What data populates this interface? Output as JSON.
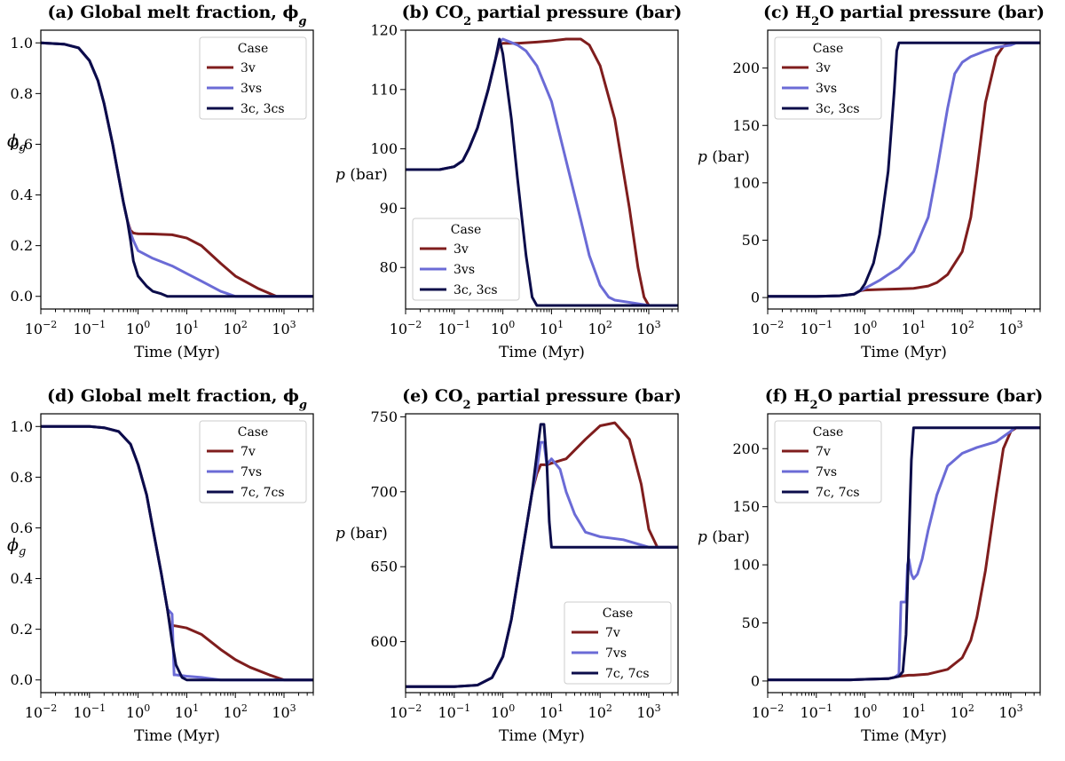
{
  "colors": {
    "v": "#7f1d1d",
    "vs": "#6b6bd6",
    "c": "#0b0c4a"
  },
  "chart_data": [
    {
      "id": "a",
      "type": "line",
      "title": "(a) Global melt fraction, ϕg",
      "title_main": "(a) Global melt fraction, ϕ",
      "title_sub": "g",
      "xlabel": "Time (Myr)",
      "ylabel": "ϕ",
      "ylabel_sub": "g",
      "xscale": "log",
      "xlim": [
        0.01,
        4000
      ],
      "ylim": [
        -0.05,
        1.05
      ],
      "yticks": [
        0.0,
        0.2,
        0.4,
        0.6,
        0.8,
        1.0
      ],
      "ytick_labels": [
        "0.0",
        "0.2",
        "0.4",
        "0.6",
        "0.8",
        "1.0"
      ],
      "xtick_labels": [
        "10−2",
        "10−1",
        "100",
        "101",
        "102",
        "103"
      ],
      "legend": {
        "title": "Case",
        "position": "top-right"
      },
      "series": [
        {
          "name": "3v",
          "color_key": "v",
          "x": [
            0.01,
            0.03,
            0.06,
            0.1,
            0.15,
            0.2,
            0.3,
            0.4,
            0.5,
            0.6,
            0.7,
            0.8,
            0.9,
            1,
            2,
            5,
            10,
            20,
            50,
            100,
            300,
            700,
            4000
          ],
          "y": [
            1.0,
            0.995,
            0.98,
            0.93,
            0.85,
            0.76,
            0.6,
            0.47,
            0.37,
            0.3,
            0.26,
            0.25,
            0.248,
            0.247,
            0.246,
            0.243,
            0.23,
            0.2,
            0.13,
            0.08,
            0.03,
            0.0,
            0.0
          ]
        },
        {
          "name": "3vs",
          "color_key": "vs",
          "x": [
            0.01,
            0.03,
            0.06,
            0.1,
            0.15,
            0.2,
            0.3,
            0.4,
            0.5,
            0.6,
            0.7,
            0.8,
            1,
            2,
            5,
            10,
            20,
            50,
            100,
            200,
            4000
          ],
          "y": [
            1.0,
            0.995,
            0.98,
            0.93,
            0.85,
            0.76,
            0.6,
            0.47,
            0.37,
            0.3,
            0.25,
            0.22,
            0.18,
            0.15,
            0.12,
            0.09,
            0.06,
            0.02,
            0.0,
            0.0,
            0.0
          ]
        },
        {
          "name": "3c, 3cs",
          "color_key": "c",
          "x": [
            0.01,
            0.03,
            0.06,
            0.1,
            0.15,
            0.2,
            0.3,
            0.4,
            0.5,
            0.6,
            0.7,
            0.8,
            1,
            1.5,
            2,
            3,
            4,
            5,
            4000
          ],
          "y": [
            1.0,
            0.995,
            0.98,
            0.93,
            0.85,
            0.76,
            0.6,
            0.47,
            0.37,
            0.3,
            0.22,
            0.14,
            0.08,
            0.04,
            0.02,
            0.01,
            0.0,
            0.0,
            0.0
          ]
        }
      ]
    },
    {
      "id": "b",
      "type": "line",
      "title": "(b) CO2 partial pressure (bar)",
      "title_main": "(b) CO",
      "title_sub": "2",
      "title_rest": " partial pressure (bar)",
      "xlabel": "Time (Myr)",
      "ylabel": "p (bar)",
      "xscale": "log",
      "xlim": [
        0.01,
        4000
      ],
      "ylim": [
        73,
        120
      ],
      "yticks": [
        80,
        90,
        100,
        110,
        120
      ],
      "ytick_labels": [
        "80",
        "90",
        "100",
        "110",
        "120"
      ],
      "xtick_labels": [
        "10−2",
        "10−1",
        "100",
        "101",
        "102",
        "103"
      ],
      "legend": {
        "title": "Case",
        "position": "lower-left"
      },
      "series": [
        {
          "name": "3v",
          "color_key": "v",
          "x": [
            0.01,
            0.05,
            0.1,
            0.15,
            0.2,
            0.3,
            0.5,
            0.7,
            0.85,
            1,
            2,
            5,
            10,
            20,
            40,
            60,
            100,
            200,
            400,
            600,
            800,
            1000,
            4000
          ],
          "y": [
            96.5,
            96.5,
            97,
            98,
            100,
            103.5,
            110,
            115,
            117.5,
            117.8,
            117.8,
            118,
            118.2,
            118.5,
            118.5,
            117.5,
            114,
            105,
            90,
            80,
            75,
            73.6,
            73.6
          ]
        },
        {
          "name": "3vs",
          "color_key": "vs",
          "x": [
            0.01,
            0.05,
            0.1,
            0.15,
            0.2,
            0.3,
            0.5,
            0.7,
            0.85,
            1,
            2,
            3,
            5,
            10,
            20,
            40,
            60,
            100,
            150,
            200,
            500,
            1000,
            4000
          ],
          "y": [
            96.5,
            96.5,
            97,
            98,
            100,
            103.5,
            110,
            115,
            118,
            118.5,
            117.5,
            116.5,
            114,
            108,
            98,
            88,
            82,
            77,
            75,
            74.5,
            74,
            73.6,
            73.6
          ]
        },
        {
          "name": "3c, 3cs",
          "color_key": "c",
          "x": [
            0.01,
            0.05,
            0.1,
            0.15,
            0.2,
            0.3,
            0.5,
            0.7,
            0.85,
            1,
            1.5,
            2,
            3,
            4,
            5,
            4000
          ],
          "y": [
            96.5,
            96.5,
            97,
            98,
            100,
            103.5,
            110,
            115,
            118.5,
            116,
            105,
            95,
            82,
            75,
            73.6,
            73.6
          ]
        }
      ]
    },
    {
      "id": "c",
      "type": "line",
      "title": "(c) H2O partial pressure (bar)",
      "title_main": "(c) H",
      "title_sub": "2",
      "title_rest": "O partial pressure (bar)",
      "xlabel": "Time (Myr)",
      "ylabel": "p (bar)",
      "xscale": "log",
      "xlim": [
        0.01,
        4000
      ],
      "ylim": [
        -10,
        233
      ],
      "yticks": [
        0,
        50,
        100,
        150,
        200
      ],
      "ytick_labels": [
        "0",
        "50",
        "100",
        "150",
        "200"
      ],
      "xtick_labels": [
        "10−2",
        "10−1",
        "100",
        "101",
        "102",
        "103"
      ],
      "legend": {
        "title": "Case",
        "position": "top-left"
      },
      "series": [
        {
          "name": "3v",
          "color_key": "v",
          "x": [
            0.01,
            0.1,
            0.3,
            0.6,
            0.8,
            1,
            2,
            5,
            10,
            20,
            30,
            50,
            100,
            150,
            200,
            300,
            500,
            700,
            1000,
            1500,
            4000
          ],
          "y": [
            1,
            1,
            1.5,
            3,
            6,
            6.5,
            7,
            7.5,
            8,
            10,
            13,
            20,
            40,
            70,
            110,
            170,
            210,
            219,
            222,
            222,
            222
          ]
        },
        {
          "name": "3vs",
          "color_key": "vs",
          "x": [
            0.01,
            0.1,
            0.3,
            0.6,
            0.8,
            1,
            2,
            3,
            5,
            10,
            20,
            30,
            50,
            70,
            100,
            150,
            200,
            300,
            500,
            1000,
            1300,
            4000
          ],
          "y": [
            1,
            1,
            1.5,
            3,
            6,
            8,
            15,
            20,
            26,
            40,
            70,
            110,
            165,
            195,
            205,
            210,
            212,
            215,
            218,
            220,
            222,
            222
          ]
        },
        {
          "name": "3c, 3cs",
          "color_key": "c",
          "x": [
            0.01,
            0.1,
            0.3,
            0.6,
            0.8,
            1,
            1.5,
            2,
            3,
            4,
            4.5,
            5,
            4000
          ],
          "y": [
            1,
            1,
            1.5,
            3,
            6,
            12,
            30,
            55,
            110,
            180,
            215,
            222,
            222
          ]
        }
      ]
    },
    {
      "id": "d",
      "type": "line",
      "title": "(d) Global melt fraction, ϕg",
      "title_main": "(d) Global melt fraction, ϕ",
      "title_sub": "g",
      "xlabel": "Time (Myr)",
      "ylabel": "ϕ",
      "ylabel_sub": "g",
      "xscale": "log",
      "xlim": [
        0.01,
        4000
      ],
      "ylim": [
        -0.05,
        1.05
      ],
      "yticks": [
        0.0,
        0.2,
        0.4,
        0.6,
        0.8,
        1.0
      ],
      "ytick_labels": [
        "0.0",
        "0.2",
        "0.4",
        "0.6",
        "0.8",
        "1.0"
      ],
      "xtick_labels": [
        "10−2",
        "10−1",
        "100",
        "101",
        "102",
        "103"
      ],
      "legend": {
        "title": "Case",
        "position": "top-right"
      },
      "series": [
        {
          "name": "7v",
          "color_key": "v",
          "x": [
            0.01,
            0.1,
            0.2,
            0.4,
            0.7,
            1,
            1.5,
            2,
            3,
            4,
            4.5,
            5,
            6,
            10,
            20,
            50,
            100,
            200,
            500,
            1000,
            4000
          ],
          "y": [
            1.0,
            1.0,
            0.995,
            0.98,
            0.93,
            0.85,
            0.73,
            0.6,
            0.42,
            0.28,
            0.22,
            0.215,
            0.213,
            0.205,
            0.18,
            0.12,
            0.08,
            0.05,
            0.02,
            0.0,
            0.0
          ]
        },
        {
          "name": "7vs",
          "color_key": "vs",
          "x": [
            0.01,
            0.1,
            0.2,
            0.4,
            0.7,
            1,
            1.5,
            2,
            3,
            4,
            5,
            5.5,
            6,
            10,
            20,
            50,
            4000
          ],
          "y": [
            1.0,
            1.0,
            0.995,
            0.98,
            0.93,
            0.85,
            0.73,
            0.6,
            0.42,
            0.28,
            0.26,
            0.02,
            0.02,
            0.015,
            0.01,
            0.0,
            0.0
          ]
        },
        {
          "name": "7c, 7cs",
          "color_key": "c",
          "x": [
            0.01,
            0.1,
            0.2,
            0.4,
            0.7,
            1,
            1.5,
            2,
            3,
            4,
            5,
            6,
            8,
            10,
            4000
          ],
          "y": [
            1.0,
            1.0,
            0.995,
            0.98,
            0.93,
            0.85,
            0.73,
            0.6,
            0.42,
            0.28,
            0.15,
            0.06,
            0.01,
            0.0,
            0.0
          ]
        }
      ]
    },
    {
      "id": "e",
      "type": "line",
      "title": "(e) CO2 partial pressure (bar)",
      "title_main": "(e) CO",
      "title_sub": "2",
      "title_rest": " partial pressure (bar)",
      "xlabel": "Time (Myr)",
      "ylabel": "p (bar)",
      "xscale": "log",
      "xlim": [
        0.01,
        4000
      ],
      "ylim": [
        566,
        752
      ],
      "yticks": [
        600,
        650,
        700,
        750
      ],
      "ytick_labels": [
        "600",
        "650",
        "700",
        "750"
      ],
      "xtick_labels": [
        "10−2",
        "10−1",
        "100",
        "101",
        "102",
        "103"
      ],
      "legend": {
        "title": "Case",
        "position": "lower-right"
      },
      "series": [
        {
          "name": "7v",
          "color_key": "v",
          "x": [
            0.01,
            0.1,
            0.3,
            0.6,
            1,
            1.5,
            2,
            3,
            4,
            5,
            6,
            8,
            10,
            20,
            50,
            100,
            200,
            400,
            700,
            1000,
            1500,
            4000
          ],
          "y": [
            570,
            570,
            571,
            576,
            590,
            615,
            640,
            675,
            700,
            712,
            718,
            718,
            719,
            722,
            735,
            744,
            746,
            735,
            705,
            675,
            663,
            663
          ]
        },
        {
          "name": "7vs",
          "color_key": "vs",
          "x": [
            0.01,
            0.1,
            0.3,
            0.6,
            1,
            1.5,
            2,
            3,
            4,
            5,
            6,
            7,
            8,
            10,
            15,
            20,
            30,
            50,
            100,
            300,
            1000,
            4000
          ],
          "y": [
            570,
            570,
            571,
            576,
            590,
            615,
            640,
            675,
            700,
            715,
            733,
            733,
            718,
            722,
            715,
            700,
            685,
            673,
            670,
            668,
            663,
            663
          ]
        },
        {
          "name": "7c, 7cs",
          "color_key": "c",
          "x": [
            0.01,
            0.1,
            0.3,
            0.6,
            1,
            1.5,
            2,
            3,
            4,
            5,
            6,
            7,
            8,
            9,
            10,
            4000
          ],
          "y": [
            570,
            570,
            571,
            576,
            590,
            615,
            640,
            675,
            700,
            725,
            745,
            745,
            720,
            680,
            663,
            663
          ]
        }
      ]
    },
    {
      "id": "f",
      "type": "line",
      "title": "(f) H2O partial pressure (bar)",
      "title_main": "(f) H",
      "title_sub": "2",
      "title_rest": "O partial pressure (bar)",
      "xlabel": "Time (Myr)",
      "ylabel": "p (bar)",
      "xscale": "log",
      "xlim": [
        0.01,
        4000
      ],
      "ylim": [
        -10,
        230
      ],
      "yticks": [
        0,
        50,
        100,
        150,
        200
      ],
      "ytick_labels": [
        "0",
        "50",
        "100",
        "150",
        "200"
      ],
      "xtick_labels": [
        "10−2",
        "10−1",
        "100",
        "101",
        "102",
        "103"
      ],
      "legend": {
        "title": "Case",
        "position": "top-left"
      },
      "series": [
        {
          "name": "7v",
          "color_key": "v",
          "x": [
            0.01,
            0.1,
            0.5,
            1,
            3,
            5,
            8,
            10,
            20,
            50,
            100,
            150,
            200,
            300,
            500,
            700,
            1000,
            1300,
            4000
          ],
          "y": [
            1,
            1,
            1,
            1.5,
            2,
            4,
            5,
            5,
            6,
            10,
            20,
            35,
            55,
            95,
            160,
            200,
            215,
            218,
            218
          ]
        },
        {
          "name": "7vs",
          "color_key": "vs",
          "x": [
            0.01,
            0.1,
            0.5,
            1,
            3,
            4,
            5,
            5.5,
            7,
            7.5,
            8,
            9,
            10,
            12,
            15,
            20,
            30,
            50,
            100,
            200,
            500,
            1000,
            1200,
            4000
          ],
          "y": [
            1,
            1,
            1,
            1.5,
            2,
            3,
            6,
            68,
            68,
            100,
            105,
            92,
            88,
            92,
            105,
            130,
            160,
            185,
            196,
            201,
            206,
            215,
            218,
            218
          ]
        },
        {
          "name": "7c, 7cs",
          "color_key": "c",
          "x": [
            0.01,
            0.1,
            0.5,
            1,
            3,
            5,
            6,
            7,
            8,
            9,
            10,
            4000
          ],
          "y": [
            1,
            1,
            1,
            1.5,
            2,
            4,
            8,
            40,
            120,
            190,
            218,
            218
          ]
        }
      ]
    }
  ]
}
